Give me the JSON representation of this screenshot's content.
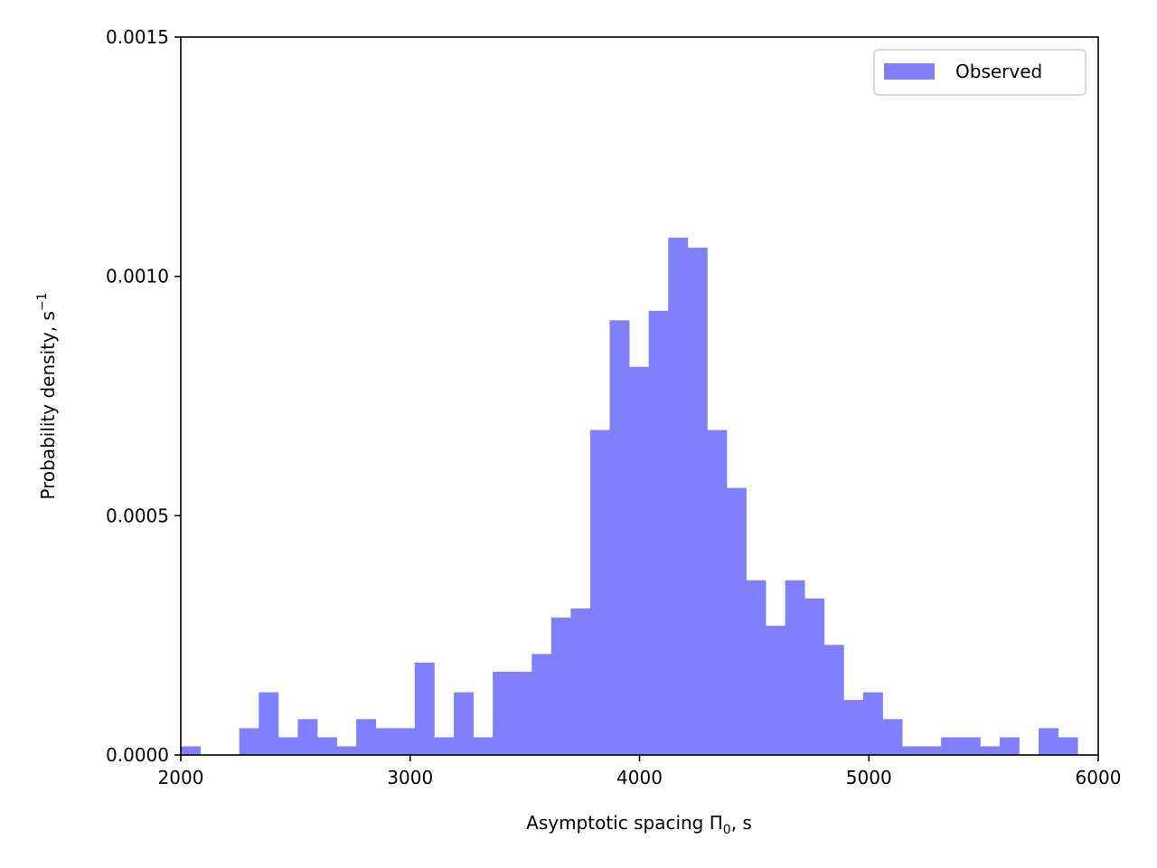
{
  "chart_data": {
    "type": "bar",
    "title": "",
    "xlabel_main": "Asymptotic spacing Π",
    "xlabel_sub": "0",
    "xlabel_tail": ", s",
    "ylabel_main": "Probability density, s",
    "ylabel_sup": "−1",
    "xlim": [
      2000,
      6000
    ],
    "ylim": [
      0,
      0.0015
    ],
    "xticks": [
      "2000",
      "3000",
      "4000",
      "5000",
      "6000"
    ],
    "yticks": [
      "0.0000",
      "0.0005",
      "0.0010",
      "0.0015"
    ],
    "legend": {
      "label": "Observed",
      "position": "top-right"
    },
    "color": "#8080ff",
    "series": [
      {
        "name": "Observed",
        "bin_start": 2000,
        "bin_width": 85,
        "values": [
          1.8e-05,
          0,
          0,
          5.6e-05,
          0.000131,
          3.7e-05,
          7.5e-05,
          3.7e-05,
          1.8e-05,
          7.5e-05,
          5.6e-05,
          5.6e-05,
          0.000193,
          3.7e-05,
          0.000131,
          3.7e-05,
          0.000174,
          0.000174,
          0.000211,
          0.000287,
          0.000306,
          0.000679,
          0.000908,
          0.000811,
          0.000928,
          0.001081,
          0.00106,
          0.000679,
          0.000558,
          0.000365,
          0.00027,
          0.000365,
          0.000327,
          0.00023,
          0.000115,
          0.000131,
          7.5e-05,
          1.8e-05,
          1.8e-05,
          3.7e-05,
          3.7e-05,
          1.8e-05,
          3.7e-05,
          0,
          5.6e-05,
          3.7e-05
        ]
      }
    ]
  }
}
